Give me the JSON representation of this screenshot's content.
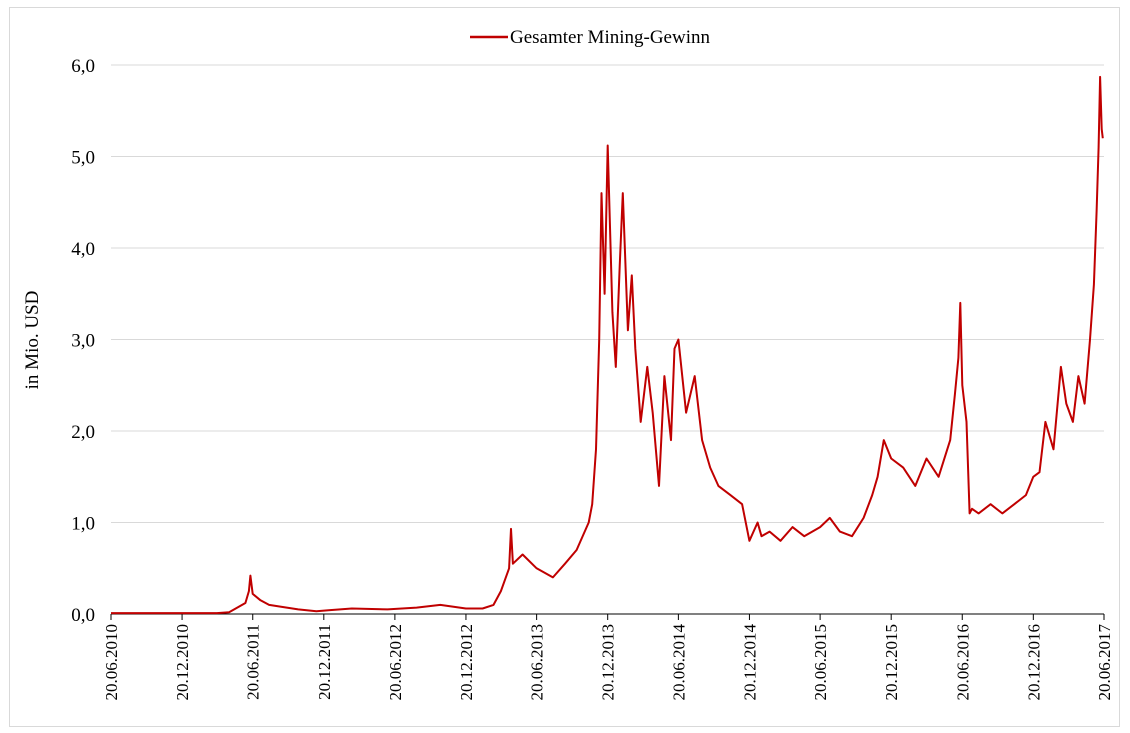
{
  "chart_data": {
    "type": "line",
    "title": "",
    "xlabel": "",
    "ylabel": "in Mio. USD",
    "ylim": [
      0,
      6
    ],
    "y_ticks": [
      "0,0",
      "1,0",
      "2,0",
      "3,0",
      "4,0",
      "5,0",
      "6,0"
    ],
    "x_ticks": [
      "20.06.2010",
      "20.12.2010",
      "20.06.2011",
      "20.12.2011",
      "20.06.2012",
      "20.12.2012",
      "20.06.2013",
      "20.12.2013",
      "20.06.2014",
      "20.12.2014",
      "20.06.2015",
      "20.12.2015",
      "20.06.2016",
      "20.12.2016",
      "20.06.2017"
    ],
    "grid": true,
    "legend": "top-center",
    "series": [
      {
        "name": "Gesamter Mining-Gewinn",
        "color": "#c00000",
        "x": [
          "2010-06-20",
          "2010-09-20",
          "2010-12-20",
          "2011-03-20",
          "2011-04-20",
          "2011-05-15",
          "2011-06-01",
          "2011-06-10",
          "2011-06-14",
          "2011-06-20",
          "2011-07-10",
          "2011-08-01",
          "2011-09-01",
          "2011-10-15",
          "2011-12-01",
          "2012-01-01",
          "2012-03-01",
          "2012-06-01",
          "2012-08-15",
          "2012-10-15",
          "2012-12-20",
          "2013-02-01",
          "2013-03-01",
          "2013-03-20",
          "2013-04-10",
          "2013-04-15",
          "2013-04-20",
          "2013-05-15",
          "2013-06-20",
          "2013-08-01",
          "2013-09-01",
          "2013-10-01",
          "2013-11-01",
          "2013-11-10",
          "2013-11-20",
          "2013-11-28",
          "2013-12-04",
          "2013-12-12",
          "2013-12-20",
          "2014-01-01",
          "2014-01-10",
          "2014-01-20",
          "2014-01-28",
          "2014-02-10",
          "2014-02-20",
          "2014-03-01",
          "2014-03-15",
          "2014-04-01",
          "2014-04-15",
          "2014-05-01",
          "2014-05-15",
          "2014-06-01",
          "2014-06-10",
          "2014-06-20",
          "2014-07-10",
          "2014-08-01",
          "2014-08-20",
          "2014-09-10",
          "2014-10-01",
          "2014-11-01",
          "2014-12-01",
          "2014-12-20",
          "2015-01-10",
          "2015-01-20",
          "2015-02-10",
          "2015-03-10",
          "2015-04-10",
          "2015-05-10",
          "2015-06-20",
          "2015-07-15",
          "2015-08-10",
          "2015-09-10",
          "2015-10-10",
          "2015-11-01",
          "2015-11-15",
          "2015-12-01",
          "2015-12-20",
          "2016-01-20",
          "2016-02-20",
          "2016-03-20",
          "2016-04-20",
          "2016-05-20",
          "2016-06-01",
          "2016-06-10",
          "2016-06-15",
          "2016-06-20",
          "2016-07-01",
          "2016-07-09",
          "2016-07-15",
          "2016-08-01",
          "2016-09-01",
          "2016-10-01",
          "2016-11-01",
          "2016-12-01",
          "2016-12-20",
          "2017-01-05",
          "2017-01-20",
          "2017-02-10",
          "2017-03-01",
          "2017-03-15",
          "2017-04-01",
          "2017-04-15",
          "2017-05-01",
          "2017-05-15",
          "2017-05-25",
          "2017-06-01",
          "2017-06-06",
          "2017-06-10",
          "2017-06-14",
          "2017-06-17"
        ],
        "values": [
          0.01,
          0.01,
          0.01,
          0.01,
          0.02,
          0.08,
          0.12,
          0.25,
          0.42,
          0.22,
          0.15,
          0.1,
          0.08,
          0.05,
          0.03,
          0.04,
          0.06,
          0.05,
          0.07,
          0.1,
          0.06,
          0.06,
          0.1,
          0.25,
          0.5,
          0.93,
          0.55,
          0.65,
          0.5,
          0.4,
          0.55,
          0.7,
          1.0,
          1.2,
          1.8,
          3.0,
          4.6,
          3.5,
          5.12,
          3.3,
          2.7,
          3.8,
          4.6,
          3.1,
          3.7,
          2.9,
          2.1,
          2.7,
          2.2,
          1.4,
          2.6,
          1.9,
          2.9,
          3.0,
          2.2,
          2.6,
          1.9,
          1.6,
          1.4,
          1.3,
          1.2,
          0.8,
          1.0,
          0.85,
          0.9,
          0.8,
          0.95,
          0.85,
          0.95,
          1.05,
          0.9,
          0.85,
          1.05,
          1.3,
          1.5,
          1.9,
          1.7,
          1.6,
          1.4,
          1.7,
          1.5,
          1.9,
          2.4,
          2.8,
          3.4,
          2.5,
          2.1,
          1.1,
          1.15,
          1.1,
          1.2,
          1.1,
          1.2,
          1.3,
          1.5,
          1.55,
          2.1,
          1.8,
          2.7,
          2.3,
          2.1,
          2.6,
          2.3,
          3.0,
          3.6,
          4.4,
          5.1,
          5.87,
          5.3,
          5.2
        ]
      }
    ]
  }
}
